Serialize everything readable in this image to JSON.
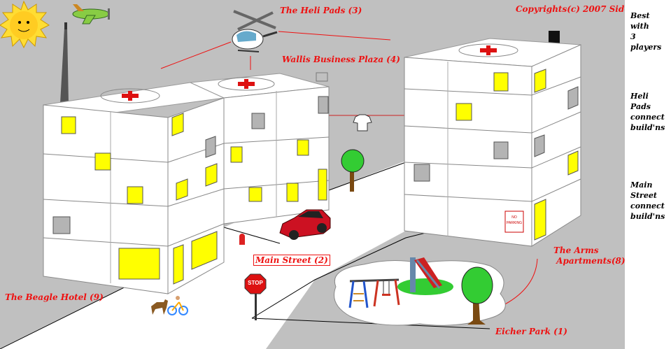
{
  "labels": {
    "copyright": "Copyrights(c) 2007 Sid6.7",
    "heli_pads": "The Heli Pads (3)",
    "wallis": "Wallis Business Plaza (4)",
    "main_street": "Main Street (2)",
    "arms_apartments": "The Arms\n Apartments(8)",
    "beagle_hotel": "The Beagle Hotel (9)",
    "eicher_park": "Eicher Park (1)"
  },
  "signs": {
    "stop": "STOP",
    "no_parking": "NO\nPARKING"
  },
  "notes": [
    "Best\nwith\n3\nplayers",
    "Heli\nPads\nconnect\nbuild'ns",
    "Main\nStreet\nconnect\nbuild'ns"
  ],
  "colors": {
    "label_red": "#ee1111",
    "window_yellow": "#ffff00",
    "window_gray": "#b4b4b4",
    "ground_gray": "#c0c0c0"
  }
}
